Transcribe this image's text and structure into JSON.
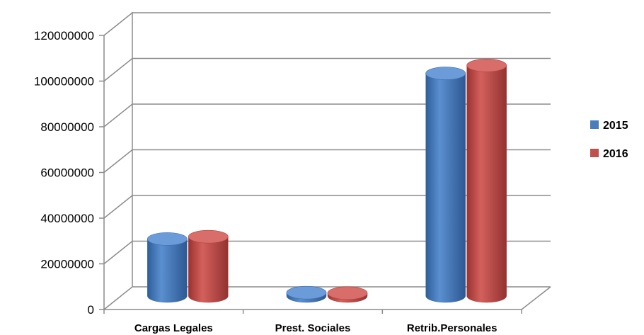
{
  "chart_data": {
    "type": "bar",
    "variant": "3d-cylinder",
    "title": "",
    "xlabel": "",
    "ylabel": "",
    "categories": [
      "Cargas Legales",
      "Prest. Sociales",
      "Retrib.Personales"
    ],
    "series": [
      {
        "name": "2015",
        "color": "#4a7ebb",
        "values": [
          25000000,
          1500000,
          97500000
        ]
      },
      {
        "name": "2016",
        "color": "#c0504d",
        "values": [
          26000000,
          1300000,
          101000000
        ]
      }
    ],
    "yticks": [
      "0",
      "20000000",
      "40000000",
      "60000000",
      "80000000",
      "100000000",
      "120000000"
    ],
    "ylim": [
      0,
      120000000
    ],
    "grid": true,
    "legend_position": "right"
  }
}
